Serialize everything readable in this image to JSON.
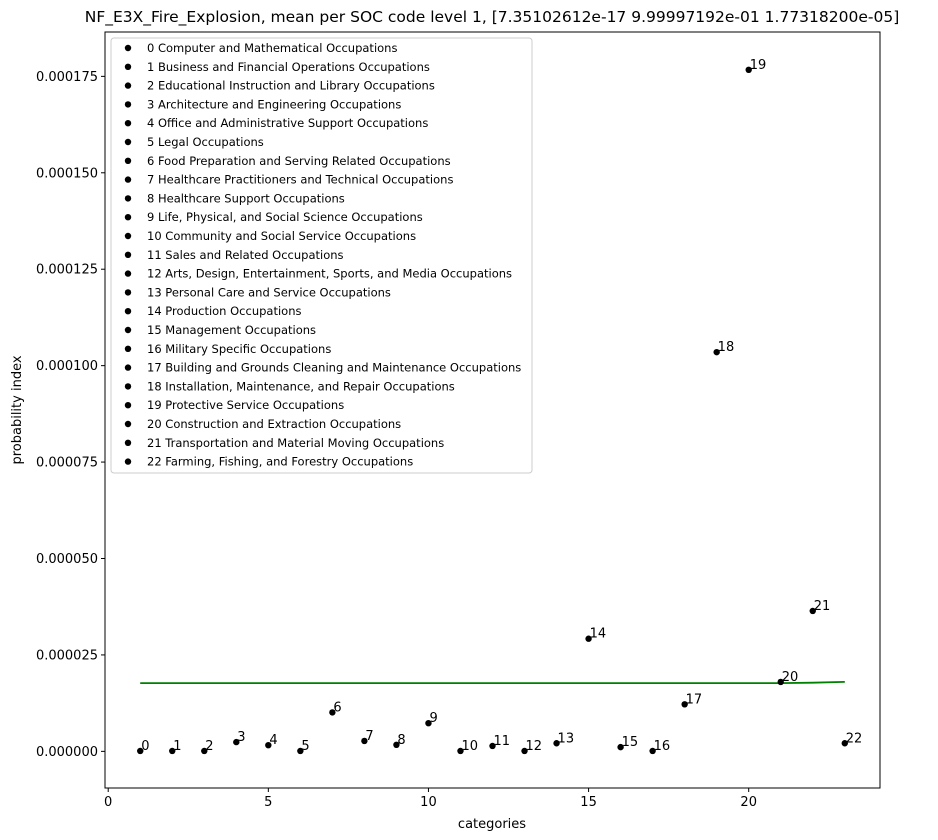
{
  "chart_data": {
    "type": "scatter",
    "title": "NF_E3X_Fire_Explosion, mean per SOC code level 1, [7.35102612e-17 9.99997192e-01 1.77318200e-05]",
    "xlabel": "categories",
    "ylabel": "probability index",
    "xlim": [
      -0.1,
      24.1
    ],
    "ylim": [
      -9.5e-06,
      0.0001865
    ],
    "x_ticks": [
      0,
      5,
      10,
      15,
      20
    ],
    "x_tick_labels": [
      "0",
      "5",
      "10",
      "15",
      "20"
    ],
    "y_ticks": [
      0,
      2.5e-05,
      5e-05,
      7.5e-05,
      0.0001,
      0.000125,
      0.00015,
      0.000175
    ],
    "y_tick_labels": [
      "0.000000",
      "0.000025",
      "0.000050",
      "0.000075",
      "0.000100",
      "0.000125",
      "0.000150",
      "0.000175"
    ],
    "grid": false,
    "legend_position": "upper-left",
    "point_color": "#000000",
    "fit_color": "#008000",
    "points": [
      {
        "x": 1,
        "y": 1e-07,
        "label": "0"
      },
      {
        "x": 2,
        "y": 1e-07,
        "label": "1"
      },
      {
        "x": 3,
        "y": 1e-07,
        "label": "2"
      },
      {
        "x": 4,
        "y": 2.4e-06,
        "label": "3"
      },
      {
        "x": 5,
        "y": 1.6e-06,
        "label": "4"
      },
      {
        "x": 6,
        "y": 1e-07,
        "label": "5"
      },
      {
        "x": 7,
        "y": 1.01e-05,
        "label": "6"
      },
      {
        "x": 8,
        "y": 2.7e-06,
        "label": "7"
      },
      {
        "x": 9,
        "y": 1.7e-06,
        "label": "8"
      },
      {
        "x": 10,
        "y": 7.3e-06,
        "label": "9"
      },
      {
        "x": 11,
        "y": 1e-07,
        "label": "10"
      },
      {
        "x": 12,
        "y": 1.4e-06,
        "label": "11"
      },
      {
        "x": 13,
        "y": 1e-07,
        "label": "12"
      },
      {
        "x": 14,
        "y": 2.1e-06,
        "label": "13"
      },
      {
        "x": 15,
        "y": 2.92e-05,
        "label": "14"
      },
      {
        "x": 16,
        "y": 1.1e-06,
        "label": "15"
      },
      {
        "x": 17,
        "y": 1e-07,
        "label": "16"
      },
      {
        "x": 18,
        "y": 1.22e-05,
        "label": "17"
      },
      {
        "x": 19,
        "y": 0.0001035,
        "label": "18"
      },
      {
        "x": 20,
        "y": 0.0001767,
        "label": "19"
      },
      {
        "x": 21,
        "y": 1.8e-05,
        "label": "20"
      },
      {
        "x": 22,
        "y": 3.64e-05,
        "label": "21"
      },
      {
        "x": 23,
        "y": 2.1e-06,
        "label": "22"
      }
    ],
    "fit_line": {
      "x": [
        1,
        3,
        5,
        7,
        9,
        11,
        13,
        15,
        17,
        19,
        20,
        21,
        22,
        23
      ],
      "y": [
        1.77e-05,
        1.77e-05,
        1.77e-05,
        1.77e-05,
        1.77e-05,
        1.77e-05,
        1.77e-05,
        1.77e-05,
        1.77e-05,
        1.77e-05,
        1.77e-05,
        1.77e-05,
        1.78e-05,
        1.8e-05
      ]
    },
    "legend": [
      "0 Computer and Mathematical Occupations",
      "1 Business and Financial Operations Occupations",
      "2 Educational Instruction and Library Occupations",
      "3 Architecture and Engineering Occupations",
      "4 Office and Administrative Support Occupations",
      "5 Legal Occupations",
      "6 Food Preparation and Serving Related Occupations",
      "7 Healthcare Practitioners and Technical Occupations",
      "8 Healthcare Support Occupations",
      "9 Life, Physical, and Social Science Occupations",
      "10 Community and Social Service Occupations",
      "11 Sales and Related Occupations",
      "12 Arts, Design, Entertainment, Sports, and Media Occupations",
      "13 Personal Care and Service Occupations",
      "14 Production Occupations",
      "15 Management Occupations",
      "16 Military Specific Occupations",
      "17 Building and Grounds Cleaning and Maintenance Occupations",
      "18 Installation, Maintenance, and Repair Occupations",
      "19 Protective Service Occupations",
      "20 Construction and Extraction Occupations",
      "21 Transportation and Material Moving Occupations",
      "22 Farming, Fishing, and Forestry Occupations"
    ]
  }
}
